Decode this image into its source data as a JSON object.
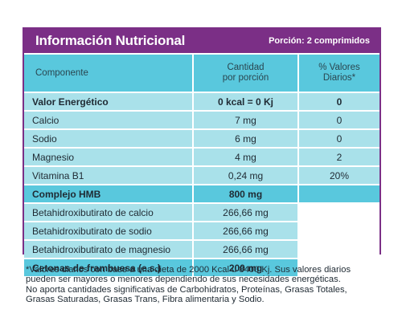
{
  "header": {
    "title": "Información Nutricional",
    "portion": "Porción: 2 comprimidos"
  },
  "columns": {
    "component": "Componente",
    "quantity_line1": "Cantidad",
    "quantity_line2": "por porción",
    "daily_line1": "% Valores",
    "daily_line2": "Diarios*"
  },
  "rows": [
    {
      "name": "Valor Energético",
      "quantity": "0 kcal = 0 Kj",
      "daily": "0"
    },
    {
      "name": "Calcio",
      "quantity": "7 mg",
      "daily": "0"
    },
    {
      "name": "Sodio",
      "quantity": "6 mg",
      "daily": "0"
    },
    {
      "name": "Magnesio",
      "quantity": "4 mg",
      "daily": "2"
    },
    {
      "name": "Vitamina B1",
      "quantity": "0,24 mg",
      "daily": "20%"
    },
    {
      "name": "Complejo HMB",
      "quantity": "800 mg",
      "daily": ""
    },
    {
      "name": "Betahidroxibutirato de calcio",
      "quantity": "266,66 mg",
      "daily": ""
    },
    {
      "name": "Betahidroxibutirato de sodio",
      "quantity": "266,66 mg",
      "daily": ""
    },
    {
      "name": "Betahidroxibutirato de magnesio",
      "quantity": "266,66 mg",
      "daily": ""
    },
    {
      "name": "Cetonas de frambuesa (e.s.)",
      "quantity": "200 mg",
      "daily": ""
    }
  ],
  "footnote": {
    "line1": "*Valores diarios con base a una dieta de 2000 Kcal u 8400 Kj. Sus valores diarios",
    "line2": "pueden ser mayores o menores dependiendo de sus necesidades energéticas.",
    "line3": "No aporta cantidades significativas de Carbohidratos, Proteínas, Grasas Totales,",
    "line4": "Grasas Saturadas, Grasas Trans, Fibra alimentaria y Sodio."
  }
}
